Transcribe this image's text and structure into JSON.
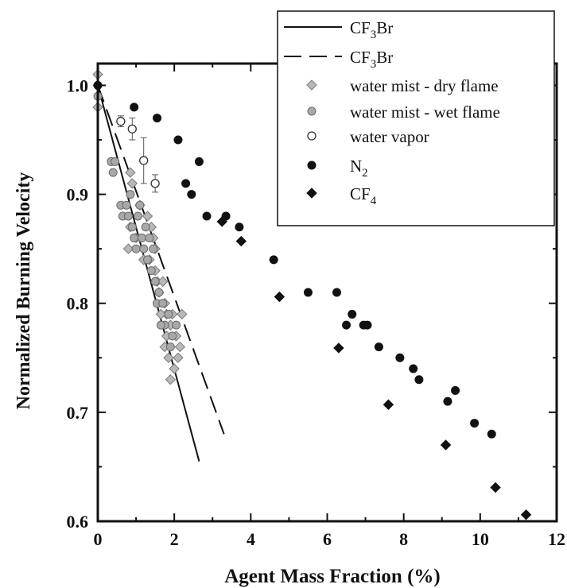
{
  "chart_data": {
    "type": "scatter",
    "xlabel": "Agent Mass Fraction (%)",
    "ylabel": "Normalized Burning Velocity",
    "xlim": [
      0,
      12
    ],
    "ylim": [
      0.6,
      1.02
    ],
    "x_ticks": [
      "0",
      "2",
      "4",
      "6",
      "8",
      "10",
      "12"
    ],
    "y_ticks": [
      "0.6",
      "0.7",
      "0.8",
      "0.9",
      "1.0"
    ],
    "legend_position": "top-right",
    "series": [
      {
        "name": "CF3Br",
        "name_parts": {
          "main": "CF",
          "sub": "3",
          "rest": "Br"
        },
        "kind": "solid-line",
        "points": [
          [
            0,
            1.0
          ],
          [
            2.65,
            0.655
          ]
        ]
      },
      {
        "name": "CF3Br",
        "name_parts": {
          "main": "CF",
          "sub": "3",
          "rest": "Br"
        },
        "kind": "dashed-line",
        "points": [
          [
            0,
            1.0
          ],
          [
            3.3,
            0.68
          ]
        ]
      },
      {
        "name": "water mist - dry flame",
        "name_parts": {
          "main": "water mist - dry flame",
          "sub": "",
          "rest": ""
        },
        "kind": "diamond-gray",
        "points": [
          [
            0,
            1.01
          ],
          [
            0,
            1.0
          ],
          [
            0,
            0.98
          ],
          [
            0.85,
            0.92
          ],
          [
            0.9,
            0.91
          ],
          [
            1.1,
            0.89
          ],
          [
            1.3,
            0.88
          ],
          [
            1.4,
            0.87
          ],
          [
            1.45,
            0.86
          ],
          [
            1.5,
            0.85
          ],
          [
            0.8,
            0.85
          ],
          [
            0.85,
            0.87
          ],
          [
            1.0,
            0.86
          ],
          [
            1.2,
            0.84
          ],
          [
            1.35,
            0.84
          ],
          [
            1.5,
            0.83
          ],
          [
            1.55,
            0.82
          ],
          [
            1.6,
            0.81
          ],
          [
            1.7,
            0.82
          ],
          [
            1.75,
            0.8
          ],
          [
            1.8,
            0.79
          ],
          [
            1.65,
            0.79
          ],
          [
            1.9,
            0.78
          ],
          [
            1.95,
            0.79
          ],
          [
            1.75,
            0.76
          ],
          [
            1.85,
            0.75
          ],
          [
            2.0,
            0.74
          ],
          [
            2.05,
            0.77
          ],
          [
            2.1,
            0.75
          ],
          [
            1.9,
            0.73
          ],
          [
            2.2,
            0.79
          ],
          [
            2.15,
            0.76
          ],
          [
            1.8,
            0.77
          ]
        ]
      },
      {
        "name": "water mist - wet flame",
        "name_parts": {
          "main": "water mist - wet flame",
          "sub": "",
          "rest": ""
        },
        "kind": "circle-gray",
        "points": [
          [
            0,
            0.99
          ],
          [
            0.35,
            0.93
          ],
          [
            0.4,
            0.92
          ],
          [
            0.45,
            0.93
          ],
          [
            0.6,
            0.89
          ],
          [
            0.65,
            0.88
          ],
          [
            0.8,
            0.88
          ],
          [
            0.9,
            0.87
          ],
          [
            0.95,
            0.86
          ],
          [
            1.05,
            0.88
          ],
          [
            1.0,
            0.85
          ],
          [
            1.15,
            0.86
          ],
          [
            1.2,
            0.85
          ],
          [
            1.3,
            0.84
          ],
          [
            1.35,
            0.86
          ],
          [
            1.4,
            0.83
          ],
          [
            1.5,
            0.82
          ],
          [
            1.55,
            0.8
          ],
          [
            1.6,
            0.81
          ],
          [
            1.7,
            0.8
          ],
          [
            1.75,
            0.78
          ],
          [
            1.85,
            0.79
          ],
          [
            1.95,
            0.77
          ],
          [
            1.9,
            0.76
          ],
          [
            2.05,
            0.78
          ],
          [
            1.25,
            0.87
          ],
          [
            1.45,
            0.85
          ],
          [
            0.75,
            0.89
          ],
          [
            0.85,
            0.9
          ],
          [
            1.1,
            0.89
          ],
          [
            1.65,
            0.78
          ]
        ]
      },
      {
        "name": "water vapor",
        "name_parts": {
          "main": "water vapor",
          "sub": "",
          "rest": ""
        },
        "kind": "circle-open",
        "points": [
          [
            0.6,
            0.967,
            0.005
          ],
          [
            0.9,
            0.96,
            0.01
          ],
          [
            1.2,
            0.931,
            0.021
          ],
          [
            1.5,
            0.91,
            0.008
          ]
        ]
      },
      {
        "name": "N2",
        "name_parts": {
          "main": "N",
          "sub": "2",
          "rest": ""
        },
        "kind": "circle-black",
        "points": [
          [
            0,
            1.0
          ],
          [
            0.95,
            0.98
          ],
          [
            1.55,
            0.97
          ],
          [
            2.1,
            0.95
          ],
          [
            2.3,
            0.91
          ],
          [
            2.45,
            0.9
          ],
          [
            2.65,
            0.93
          ],
          [
            2.85,
            0.88
          ],
          [
            3.35,
            0.88
          ],
          [
            3.7,
            0.87
          ],
          [
            4.6,
            0.84
          ],
          [
            5.5,
            0.81
          ],
          [
            6.25,
            0.81
          ],
          [
            6.5,
            0.78
          ],
          [
            6.65,
            0.79
          ],
          [
            6.95,
            0.78
          ],
          [
            7.05,
            0.78
          ],
          [
            7.35,
            0.76
          ],
          [
            7.9,
            0.75
          ],
          [
            8.25,
            0.74
          ],
          [
            8.4,
            0.73
          ],
          [
            9.15,
            0.71
          ],
          [
            9.35,
            0.72
          ],
          [
            9.85,
            0.69
          ],
          [
            10.3,
            0.68
          ]
        ]
      },
      {
        "name": "CF4",
        "name_parts": {
          "main": "CF",
          "sub": "4",
          "rest": ""
        },
        "kind": "diamond-black",
        "points": [
          [
            3.25,
            0.875
          ],
          [
            3.75,
            0.857
          ],
          [
            4.75,
            0.806
          ],
          [
            6.3,
            0.759
          ],
          [
            7.6,
            0.707
          ],
          [
            9.1,
            0.67
          ],
          [
            10.4,
            0.631
          ],
          [
            11.2,
            0.606
          ]
        ]
      }
    ]
  }
}
